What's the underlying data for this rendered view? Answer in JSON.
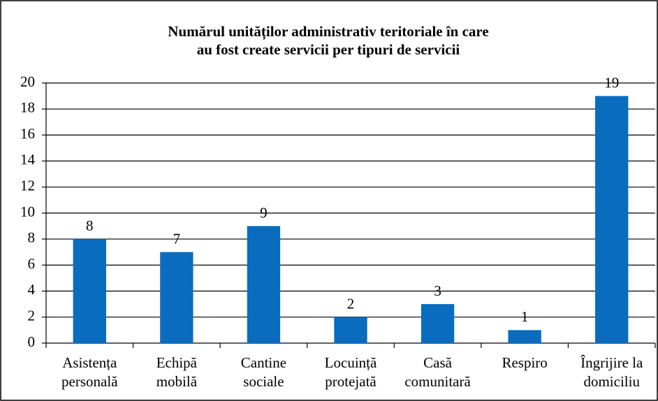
{
  "chart_data": {
    "type": "bar",
    "title": [
      "Numărul unităților administrativ teritoriale în care",
      "au fost create servicii per tipuri de servicii"
    ],
    "categories": [
      [
        "Asistența",
        "personală"
      ],
      [
        "Echipă",
        "mobilă"
      ],
      [
        "Cantine",
        "sociale"
      ],
      [
        "Locuință",
        "protejată"
      ],
      [
        "Casă",
        "comunitară"
      ],
      [
        "Respiro"
      ],
      [
        "Îngrijire la",
        "domiciliu"
      ]
    ],
    "values": [
      8,
      7,
      9,
      2,
      3,
      1,
      19
    ],
    "color": "#0a6cbf",
    "ylim": [
      0,
      20
    ],
    "yticks": [
      0,
      2,
      4,
      6,
      8,
      10,
      12,
      14,
      16,
      18,
      20
    ],
    "grid": true
  }
}
